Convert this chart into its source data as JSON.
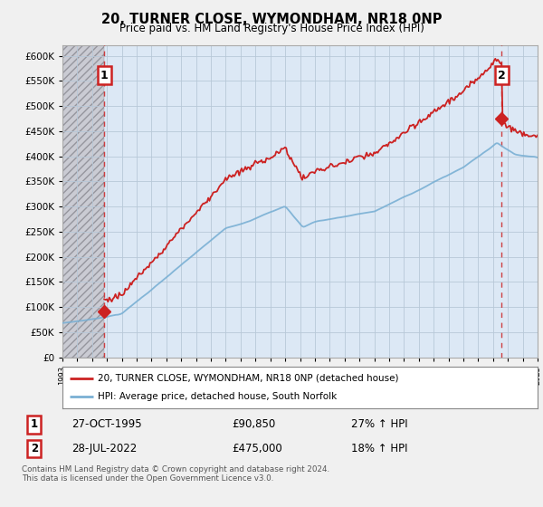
{
  "title": "20, TURNER CLOSE, WYMONDHAM, NR18 0NP",
  "subtitle": "Price paid vs. HM Land Registry's House Price Index (HPI)",
  "ytick_values": [
    0,
    50000,
    100000,
    150000,
    200000,
    250000,
    300000,
    350000,
    400000,
    450000,
    500000,
    550000,
    600000
  ],
  "ylim": [
    0,
    620000
  ],
  "x_start_year": 1993,
  "x_end_year": 2025,
  "marker1_year": 1995.82,
  "marker1_value": 90850,
  "marker2_year": 2022.57,
  "marker2_value": 475000,
  "legend_line1": "20, TURNER CLOSE, WYMONDHAM, NR18 0NP (detached house)",
  "legend_line2": "HPI: Average price, detached house, South Norfolk",
  "table_row1_date": "27-OCT-1995",
  "table_row1_price": "£90,850",
  "table_row1_hpi": "27% ↑ HPI",
  "table_row2_date": "28-JUL-2022",
  "table_row2_price": "£475,000",
  "table_row2_hpi": "18% ↑ HPI",
  "footer": "Contains HM Land Registry data © Crown copyright and database right 2024.\nThis data is licensed under the Open Government Licence v3.0.",
  "hpi_color": "#7ab0d4",
  "price_color": "#cc2222",
  "bg_color": "#f0f0f0",
  "plot_bg": "#dce8f5",
  "hatch_cutoff_year": 1995.82,
  "hatch_color": "#b0b0b8"
}
